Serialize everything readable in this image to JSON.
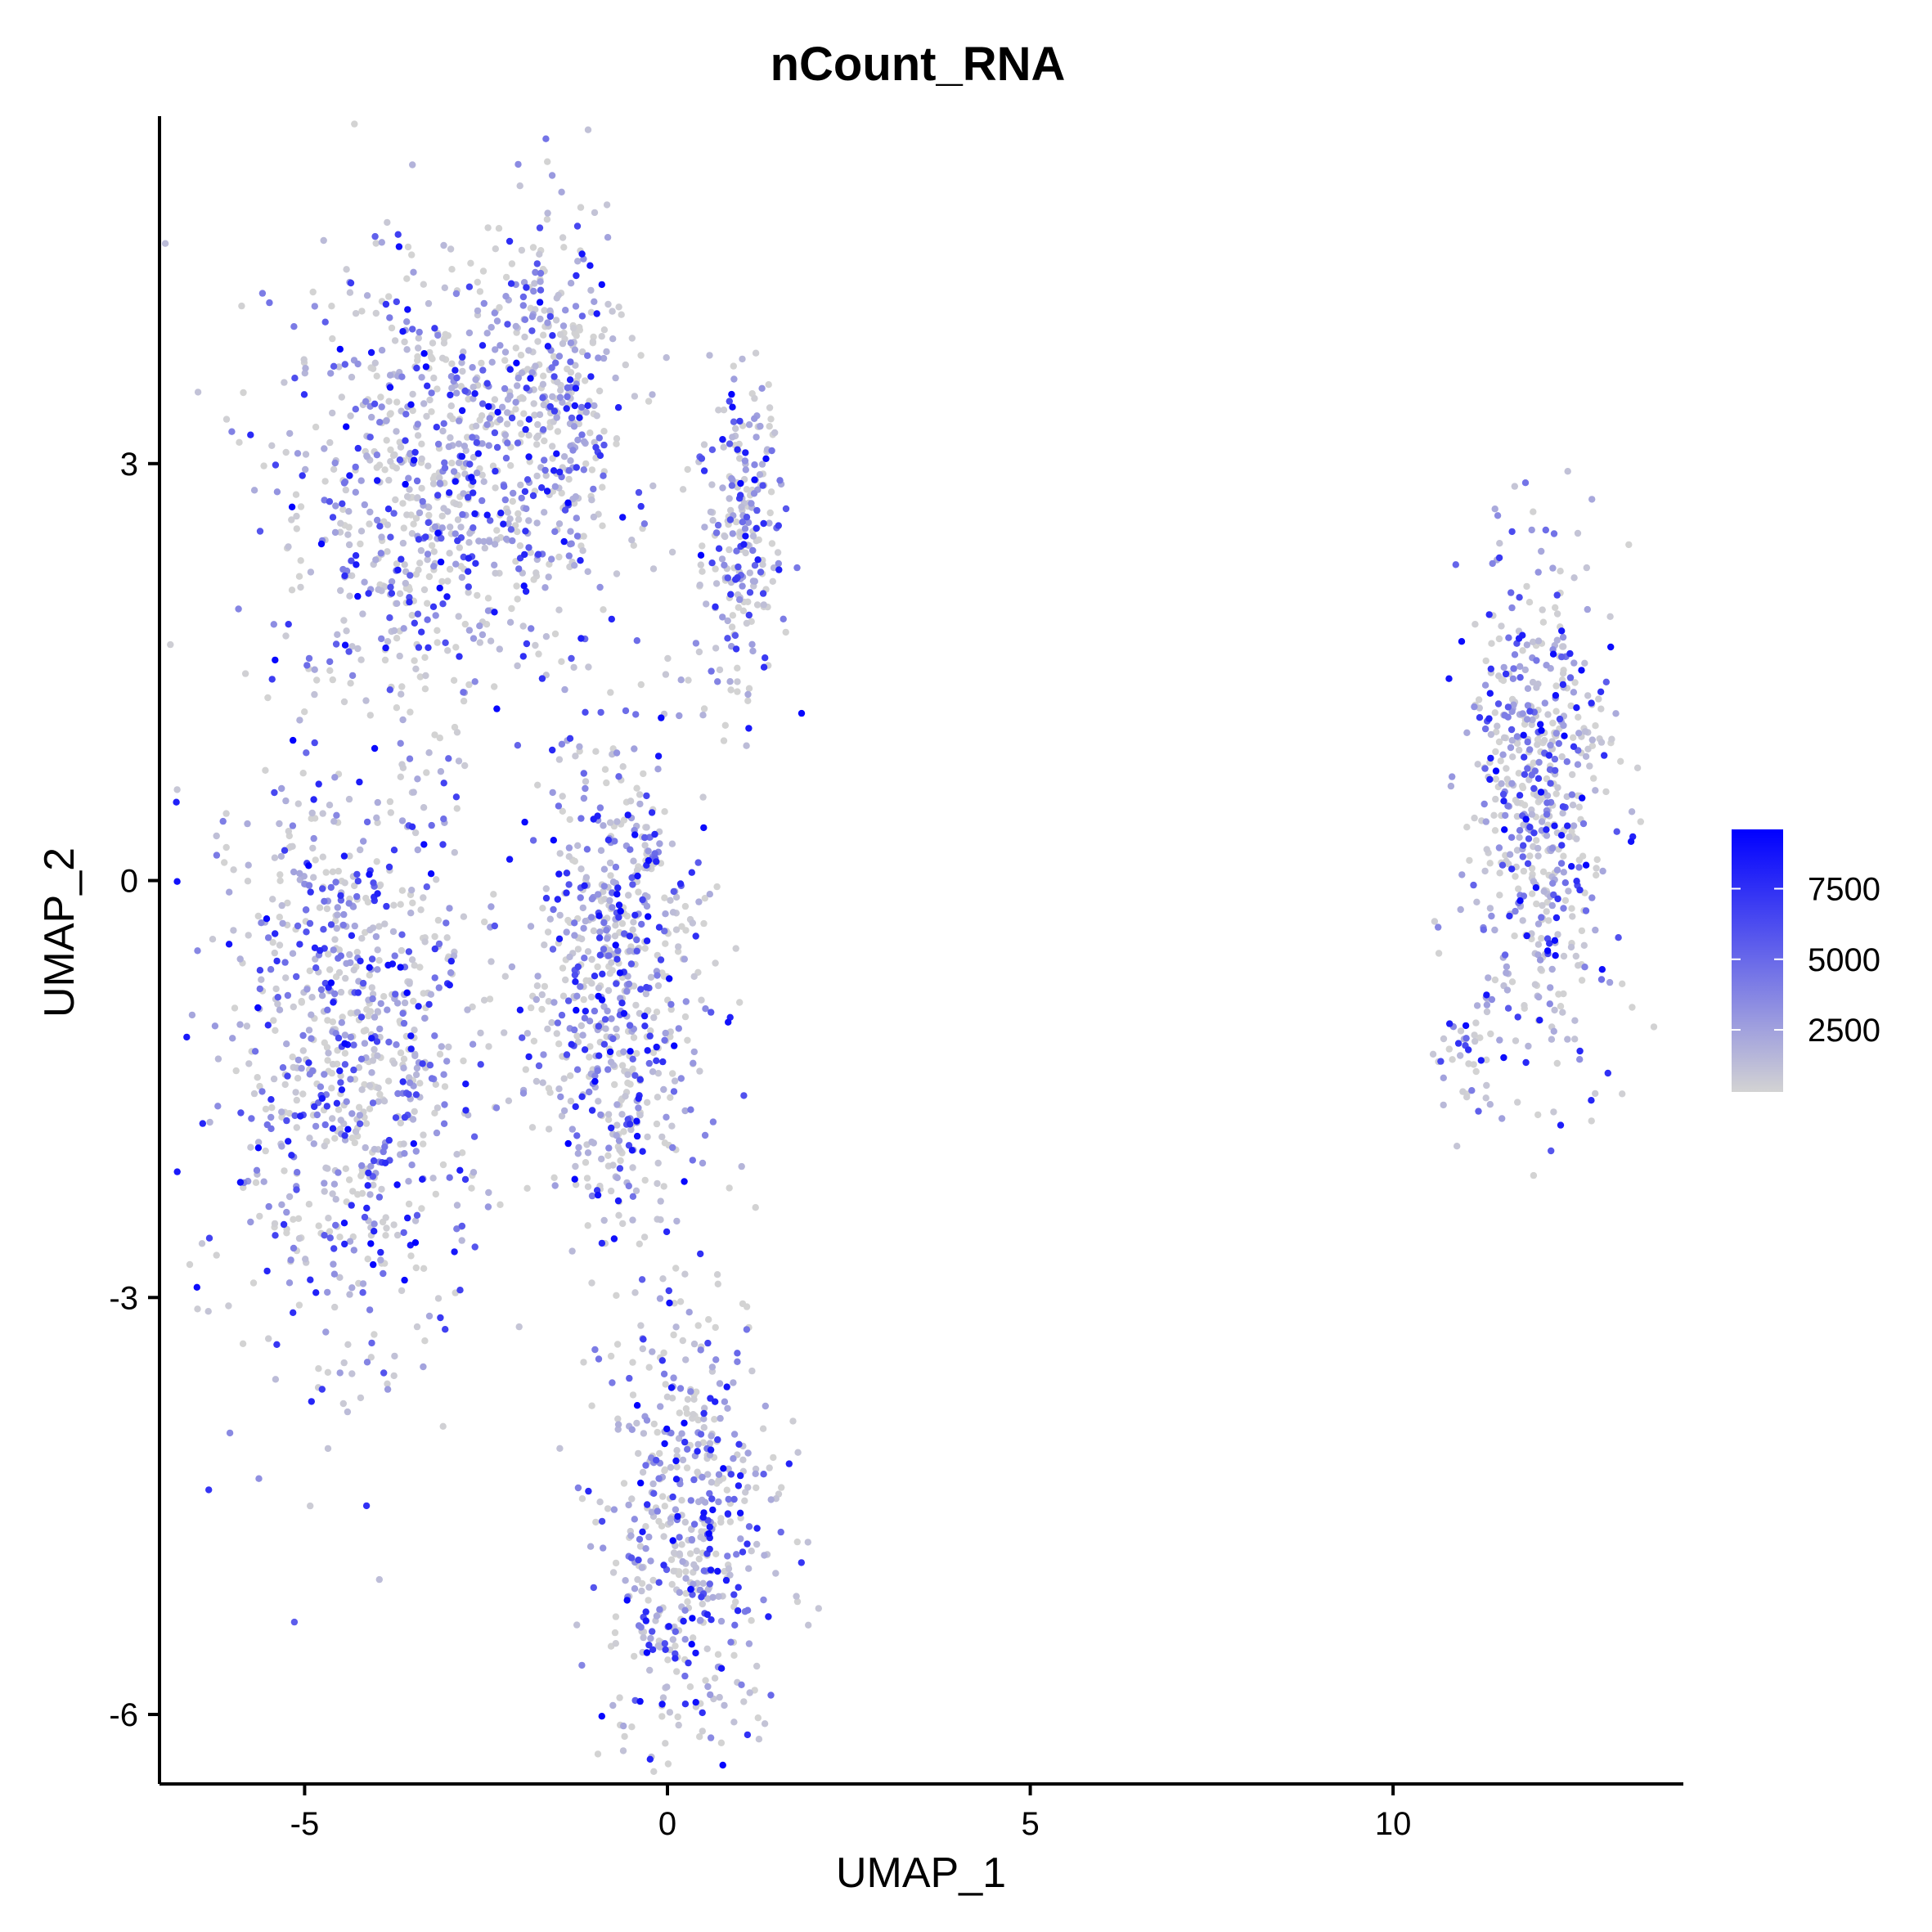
{
  "chart_data": {
    "type": "scatter",
    "title": "nCount_RNA",
    "xlabel": "UMAP_1",
    "ylabel": "UMAP_2",
    "xlim": [
      -7,
      14
    ],
    "ylim": [
      -6.5,
      5.5
    ],
    "x_ticks": [
      -5,
      0,
      5,
      10
    ],
    "x_tick_labels": [
      "-5",
      "0",
      "5",
      "10"
    ],
    "y_ticks": [
      3,
      0,
      -3,
      -6
    ],
    "y_tick_labels": [
      "3",
      "0",
      "-3",
      "-6"
    ],
    "grid": false,
    "legend": {
      "placement": "right",
      "type": "colorbar",
      "min": 300,
      "max": 9600,
      "low_color": "#d3d3d3",
      "high_color": "#0000ff",
      "ticks": [
        2500,
        5000,
        7500
      ],
      "tick_labels": [
        "2500",
        "5000",
        "7500"
      ]
    },
    "clusters": [
      {
        "name": "",
        "cx": -4.4,
        "cy": -1.2,
        "sx": 0.9,
        "sy": 1.1,
        "n": 900
      },
      {
        "name": "",
        "cx": -3.2,
        "cy": 2.9,
        "sx": 1.1,
        "sy": 0.8,
        "n": 800
      },
      {
        "name": "",
        "cx": -1.5,
        "cy": 3.5,
        "sx": 0.5,
        "sy": 0.7,
        "n": 300
      },
      {
        "name": "",
        "cx": -0.7,
        "cy": -0.8,
        "sx": 0.6,
        "sy": 0.9,
        "n": 700
      },
      {
        "name": "",
        "cx": 1.0,
        "cy": 2.5,
        "sx": 0.3,
        "sy": 0.6,
        "n": 250
      },
      {
        "name": "",
        "cx": 0.3,
        "cy": -4.7,
        "sx": 0.6,
        "sy": 0.8,
        "n": 550
      },
      {
        "name": "",
        "cx": 12.0,
        "cy": 0.5,
        "sx": 0.5,
        "sy": 0.9,
        "n": 600
      },
      {
        "name": "",
        "cx": 11.0,
        "cy": -1.2,
        "sx": 0.3,
        "sy": 0.2,
        "n": 40
      }
    ]
  }
}
